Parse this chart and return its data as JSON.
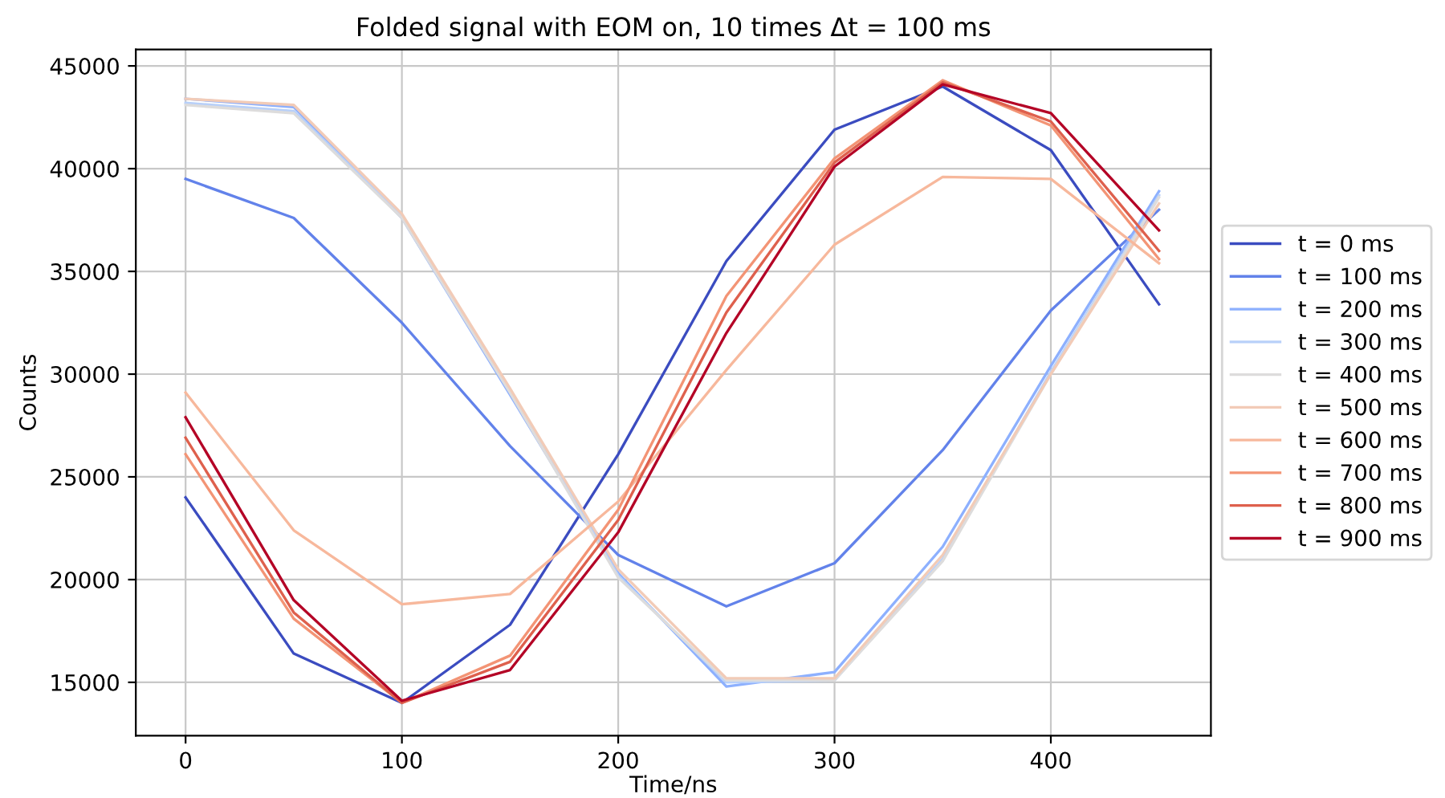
{
  "chart_data": {
    "type": "line",
    "title": "Folded signal with EOM on, 10 times Δt = 100 ms",
    "xlabel": "Time/ns",
    "ylabel": "Counts",
    "x": [
      0,
      50,
      100,
      150,
      200,
      250,
      300,
      350,
      400,
      450
    ],
    "xlim": [
      -23,
      474
    ],
    "xticks": [
      0,
      100,
      200,
      300,
      400
    ],
    "ylim": [
      12400,
      45800
    ],
    "yticks": [
      15000,
      20000,
      25000,
      30000,
      35000,
      40000,
      45000
    ],
    "grid": true,
    "legend": "right",
    "line_style": "solid",
    "marker": "none",
    "series": [
      {
        "name": "t = 0 ms",
        "color": "#3b4cc0",
        "values": [
          24000,
          16400,
          14000,
          17800,
          26100,
          35500,
          41900,
          44000,
          40900,
          33400
        ]
      },
      {
        "name": "t = 100 ms",
        "color": "#6282ea",
        "values": [
          39500,
          37600,
          32500,
          26500,
          21200,
          18700,
          20800,
          26300,
          33100,
          38000
        ]
      },
      {
        "name": "t = 200 ms",
        "color": "#8db0fe",
        "values": [
          43400,
          43000,
          37600,
          29000,
          20300,
          14800,
          15500,
          21600,
          30400,
          38900
        ]
      },
      {
        "name": "t = 300 ms",
        "color": "#b8d0f9",
        "values": [
          43200,
          42800,
          37700,
          29200,
          20200,
          15000,
          15100,
          21000,
          30100,
          38700
        ]
      },
      {
        "name": "t = 400 ms",
        "color": "#dddcdc",
        "values": [
          43100,
          42700,
          37600,
          29100,
          20100,
          15100,
          15100,
          20900,
          30000,
          38600
        ]
      },
      {
        "name": "t = 500 ms",
        "color": "#f2cbb7",
        "values": [
          43400,
          43100,
          37800,
          29300,
          20500,
          15200,
          15200,
          21200,
          30000,
          38300
        ]
      },
      {
        "name": "t = 600 ms",
        "color": "#f7b89c",
        "values": [
          29100,
          22400,
          18800,
          19300,
          23800,
          30200,
          36300,
          39600,
          39500,
          35400
        ]
      },
      {
        "name": "t = 700 ms",
        "color": "#f39475",
        "values": [
          26100,
          18100,
          14000,
          16300,
          23400,
          33800,
          40500,
          44300,
          42100,
          35600
        ]
      },
      {
        "name": "t = 800 ms",
        "color": "#de604d",
        "values": [
          26900,
          18400,
          14000,
          16000,
          22900,
          33000,
          40300,
          44200,
          42300,
          36000
        ]
      },
      {
        "name": "t = 900 ms",
        "color": "#b40426",
        "values": [
          27900,
          19000,
          14100,
          15600,
          22300,
          32000,
          40100,
          44100,
          42700,
          37000
        ]
      }
    ]
  }
}
